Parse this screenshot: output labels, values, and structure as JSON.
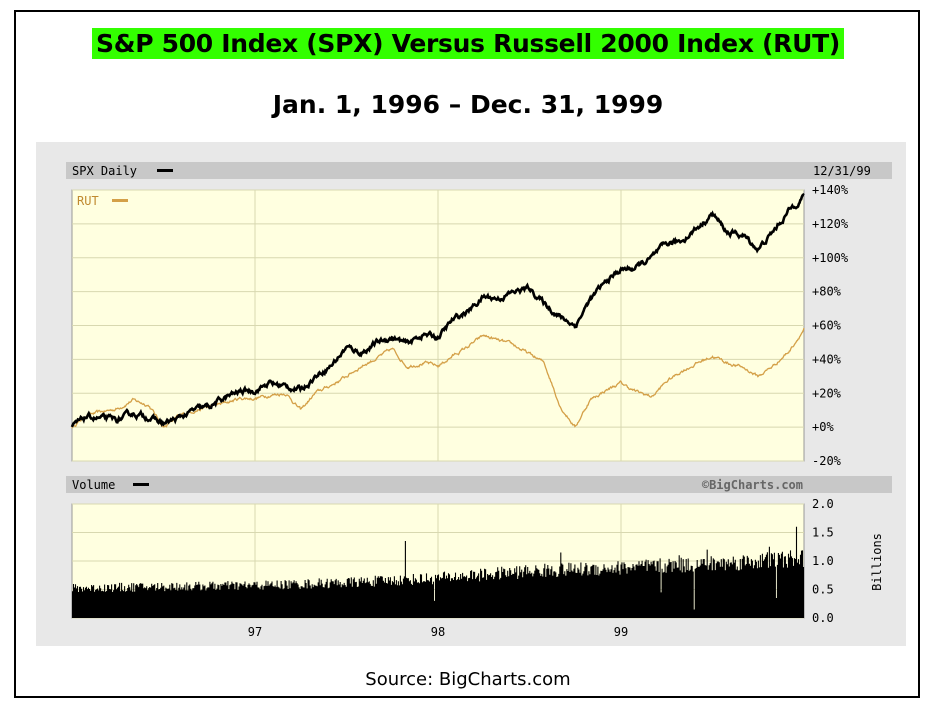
{
  "page": {
    "title": "S&P 500 Index (SPX) Versus Russell 2000 Index (RUT)",
    "subtitle": "Jan. 1, 1996 – Dec. 31, 1999",
    "source": "Source: BigCharts.com",
    "colors": {
      "title_highlight": "#33ff00",
      "plot_bg": "#ffffe0",
      "panel_bg": "#e8e8e8",
      "spx": "#000000",
      "rut": "#d4a048",
      "grid": "#c8c8a0"
    }
  },
  "chart_data": [
    {
      "type": "line",
      "panel_label": "SPX Daily",
      "date_label": "12/31/99",
      "series": [
        {
          "name": "SPX Daily",
          "color": "#000000",
          "points": [
            [
              1996.0,
              0
            ],
            [
              1996.08,
              6
            ],
            [
              1996.17,
              5
            ],
            [
              1996.25,
              4
            ],
            [
              1996.33,
              8
            ],
            [
              1996.42,
              6
            ],
            [
              1996.5,
              2
            ],
            [
              1996.58,
              5
            ],
            [
              1996.67,
              10
            ],
            [
              1996.75,
              12
            ],
            [
              1996.83,
              17
            ],
            [
              1996.92,
              21
            ],
            [
              1997.0,
              22
            ],
            [
              1997.08,
              26
            ],
            [
              1997.17,
              24
            ],
            [
              1997.25,
              22
            ],
            [
              1997.33,
              30
            ],
            [
              1997.42,
              37
            ],
            [
              1997.5,
              47
            ],
            [
              1997.58,
              44
            ],
            [
              1997.67,
              50
            ],
            [
              1997.75,
              53
            ],
            [
              1997.83,
              49
            ],
            [
              1997.92,
              55
            ],
            [
              1998.0,
              53
            ],
            [
              1998.08,
              63
            ],
            [
              1998.17,
              69
            ],
            [
              1998.25,
              77
            ],
            [
              1998.33,
              76
            ],
            [
              1998.42,
              80
            ],
            [
              1998.5,
              82
            ],
            [
              1998.58,
              73
            ],
            [
              1998.67,
              65
            ],
            [
              1998.75,
              60
            ],
            [
              1998.83,
              75
            ],
            [
              1998.92,
              86
            ],
            [
              1999.0,
              93
            ],
            [
              1999.08,
              94
            ],
            [
              1999.17,
              100
            ],
            [
              1999.25,
              108
            ],
            [
              1999.33,
              110
            ],
            [
              1999.42,
              118
            ],
            [
              1999.5,
              126
            ],
            [
              1999.58,
              115
            ],
            [
              1999.67,
              113
            ],
            [
              1999.75,
              105
            ],
            [
              1999.83,
              115
            ],
            [
              1999.92,
              128
            ],
            [
              2000.0,
              137
            ]
          ]
        },
        {
          "name": "RUT",
          "color": "#d4a048",
          "points": [
            [
              1996.0,
              0
            ],
            [
              1996.08,
              7
            ],
            [
              1996.17,
              9
            ],
            [
              1996.25,
              11
            ],
            [
              1996.33,
              16
            ],
            [
              1996.42,
              13
            ],
            [
              1996.5,
              0
            ],
            [
              1996.58,
              6
            ],
            [
              1996.67,
              10
            ],
            [
              1996.75,
              12
            ],
            [
              1996.83,
              14
            ],
            [
              1996.92,
              17
            ],
            [
              1997.0,
              17
            ],
            [
              1997.08,
              19
            ],
            [
              1997.17,
              20
            ],
            [
              1997.25,
              10
            ],
            [
              1997.33,
              20
            ],
            [
              1997.42,
              25
            ],
            [
              1997.5,
              30
            ],
            [
              1997.58,
              36
            ],
            [
              1997.67,
              41
            ],
            [
              1997.75,
              46
            ],
            [
              1997.83,
              36
            ],
            [
              1997.92,
              38
            ],
            [
              1998.0,
              36
            ],
            [
              1998.08,
              42
            ],
            [
              1998.17,
              48
            ],
            [
              1998.25,
              54
            ],
            [
              1998.33,
              51
            ],
            [
              1998.42,
              48
            ],
            [
              1998.5,
              43
            ],
            [
              1998.58,
              38
            ],
            [
              1998.67,
              12
            ],
            [
              1998.75,
              0
            ],
            [
              1998.83,
              16
            ],
            [
              1998.92,
              22
            ],
            [
              1999.0,
              26
            ],
            [
              1999.08,
              21
            ],
            [
              1999.17,
              18
            ],
            [
              1999.25,
              27
            ],
            [
              1999.33,
              33
            ],
            [
              1999.42,
              38
            ],
            [
              1999.5,
              42
            ],
            [
              1999.58,
              38
            ],
            [
              1999.67,
              35
            ],
            [
              1999.75,
              30
            ],
            [
              1999.83,
              36
            ],
            [
              1999.92,
              45
            ],
            [
              2000.0,
              58
            ]
          ]
        }
      ],
      "x_range": [
        1996.0,
        2000.0
      ],
      "y_range": [
        -20,
        140
      ],
      "y_ticks": [
        "+140%",
        "+120%",
        "+100%",
        "+80%",
        "+60%",
        "+40%",
        "+20%",
        "+0%",
        "-20%"
      ],
      "x_ticks": [
        "97",
        "98",
        "99"
      ],
      "watermark": "©BigCharts.com"
    },
    {
      "type": "bar",
      "panel_label": "Volume",
      "ylabel": "Billions",
      "y_range": [
        0,
        2.0
      ],
      "y_ticks": [
        "2.0",
        "1.5",
        "1.0",
        "0.5",
        "0.0"
      ],
      "volume_profile": [
        [
          1996.0,
          0.52
        ],
        [
          1996.5,
          0.55
        ],
        [
          1997.0,
          0.57
        ],
        [
          1997.5,
          0.62
        ],
        [
          1998.0,
          0.7
        ],
        [
          1998.5,
          0.82
        ],
        [
          1999.0,
          0.88
        ],
        [
          1999.5,
          0.95
        ],
        [
          2000.0,
          1.05
        ]
      ],
      "volume_spikes": [
        [
          1997.82,
          1.35
        ],
        [
          1998.67,
          1.15
        ],
        [
          1999.32,
          1.1
        ],
        [
          1999.47,
          1.2
        ],
        [
          1999.81,
          1.25
        ],
        [
          1999.96,
          1.6
        ]
      ],
      "volume_dips": [
        [
          1997.98,
          0.3
        ],
        [
          1999.22,
          0.45
        ],
        [
          1999.4,
          0.15
        ],
        [
          1999.85,
          0.35
        ]
      ]
    }
  ]
}
